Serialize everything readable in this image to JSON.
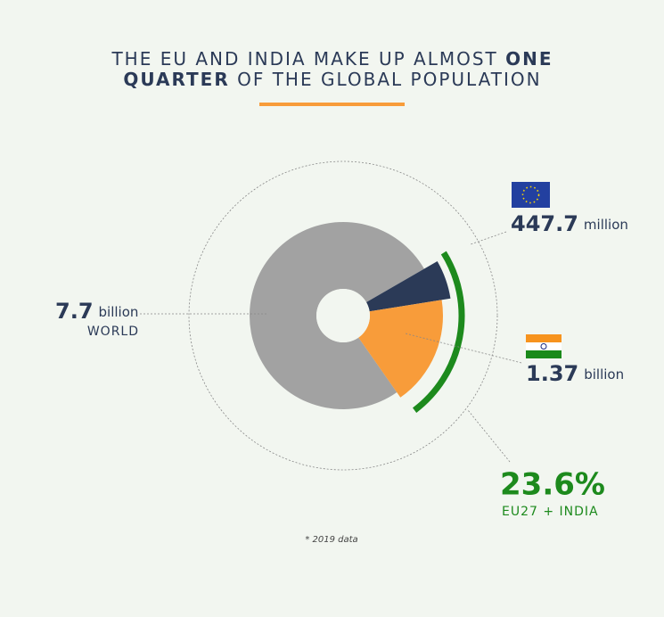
{
  "chart_data": {
    "type": "donut",
    "title": [
      [
        "THE EU AND INDIA MAKE UP ALMOST",
        "ONE"
      ],
      [
        "QUARTER",
        "OF THE GLOBAL POPULATION"
      ]
    ],
    "title_bold": [
      [
        false,
        true
      ],
      [
        true,
        false
      ]
    ],
    "segments": [
      {
        "name": "WORLD",
        "value": 7.7,
        "unit": "billion",
        "color": "#a2a2a2"
      },
      {
        "value": 447.7,
        "unit": "million",
        "color": "#2b3a57"
      },
      {
        "value": 1.37,
        "unit": "billion",
        "color": "#f89c3a"
      }
    ],
    "share": {
      "value": 23.6,
      "label": "23.6%",
      "name": "EU27 + INDIA",
      "color": "#1d8a1d"
    },
    "note": "* 2019 data"
  }
}
